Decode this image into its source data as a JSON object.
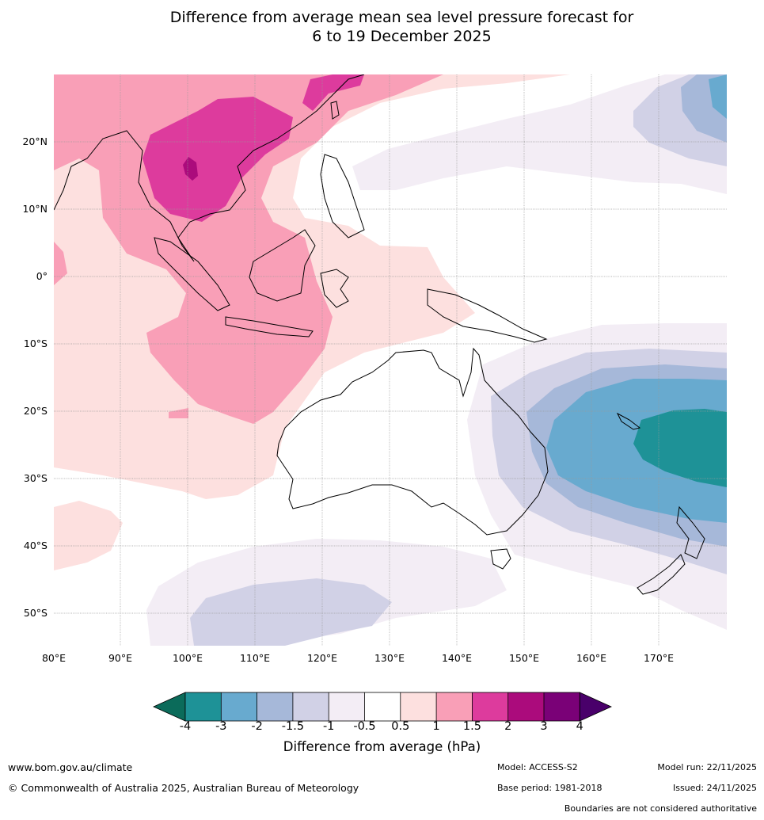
{
  "title": {
    "line1": "Difference from average mean sea level pressure forecast for",
    "line2": "6 to 19 December 2025"
  },
  "axes": {
    "lon_labels": [
      "80°E",
      "90°E",
      "100°E",
      "110°E",
      "120°E",
      "130°E",
      "140°E",
      "150°E",
      "160°E",
      "170°E"
    ],
    "lat_labels": [
      "20°N",
      "10°N",
      "0°",
      "10°S",
      "20°S",
      "30°S",
      "40°S",
      "50°S"
    ]
  },
  "colorbar": {
    "ticks": [
      "-4",
      "-3",
      "-2",
      "-1.5",
      "-1",
      "-0.5",
      "0.5",
      "1",
      "1.5",
      "2",
      "3",
      "4"
    ],
    "title": "Difference from average (hPa)",
    "colors": {
      "below_min": "#0b6b5a",
      "bins": [
        "#1e9297",
        "#68aacf",
        "#a6b8d9",
        "#d1d1e6",
        "#f3edf5",
        "#ffffff",
        "#fde0df",
        "#f99fb7",
        "#dd3b9d",
        "#ab0b7c",
        "#7a0177"
      ],
      "above_max": "#49006a"
    }
  },
  "footer": {
    "website": "www.bom.gov.au/climate",
    "copyright": "© Commonwealth of Australia 2025, Australian Bureau of Meteorology",
    "model": "Model: ACCESS-S2",
    "base_period": "Base period: 1981-2018",
    "model_run": "Model run: 22/11/2025",
    "issued": "Issued: 24/11/2025",
    "boundaries": "Boundaries are not considered authoritative"
  }
}
